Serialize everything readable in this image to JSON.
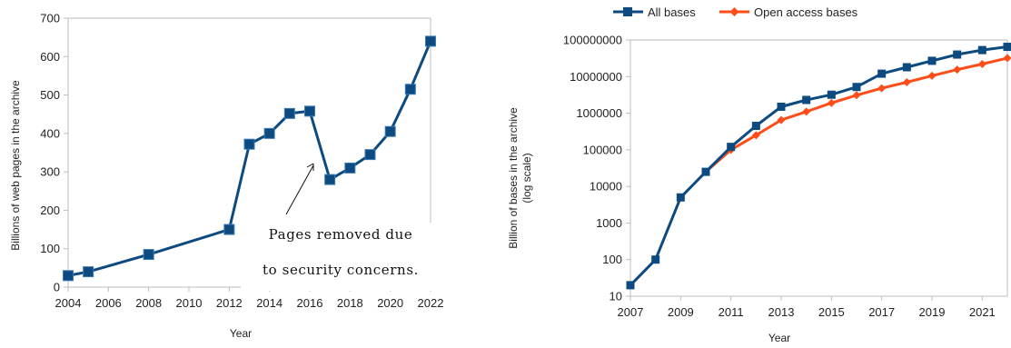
{
  "chart_data": [
    {
      "type": "line",
      "xlabel": "Year",
      "ylabel": "Billions of web pages in the archive",
      "xlim": [
        2004,
        2022
      ],
      "ylim": [
        0,
        700
      ],
      "x_ticks": [
        "2004",
        "2006",
        "2008",
        "2010",
        "2012",
        "2014",
        "2016",
        "2018",
        "2020",
        "2022"
      ],
      "y_ticks": [
        "0",
        "100",
        "200",
        "300",
        "400",
        "500",
        "600",
        "700"
      ],
      "grid": false,
      "colors": {
        "series": "#0c4a7f",
        "frame": "#bdbdbd"
      },
      "series": [
        {
          "x": [
            2004,
            2005,
            2008,
            2012,
            2013,
            2014,
            2015,
            2016,
            2017,
            2018,
            2019,
            2020,
            2021,
            2022
          ],
          "values": [
            30,
            40,
            85,
            150,
            372,
            400,
            452,
            458,
            280,
            310,
            345,
            405,
            515,
            640
          ]
        }
      ],
      "annotation": {
        "line1": "Pages removed due",
        "line2": "to security concerns.",
        "points_to_x": 2016
      }
    },
    {
      "type": "line",
      "xlabel": "Year",
      "ylabel_line1": "Billion of bases in the archive",
      "ylabel_line2": "(log scale)",
      "yscale": "log",
      "xlim": [
        2007,
        2022
      ],
      "ylim": [
        10,
        100000000
      ],
      "x_ticks": [
        "2007",
        "2009",
        "2011",
        "2013",
        "2015",
        "2017",
        "2019",
        "2021"
      ],
      "y_ticks": [
        "10",
        "100",
        "1000",
        "10000",
        "100000",
        "1000000",
        "10000000",
        "100000000"
      ],
      "grid": false,
      "legend_position": "top",
      "colors": {
        "all": "#0c4a7f",
        "open": "#ff4d1a",
        "frame": "#bdbdbd"
      },
      "series": [
        {
          "name": "All bases",
          "x": [
            2007,
            2008,
            2009,
            2010,
            2011,
            2012,
            2013,
            2014,
            2015,
            2016,
            2017,
            2018,
            2019,
            2020,
            2021,
            2022
          ],
          "values": [
            20,
            100,
            5000,
            25000,
            120000,
            450000,
            1500000,
            2300000,
            3200000,
            5200000,
            12000000,
            18000000,
            27000000,
            40000000,
            53000000,
            65000000
          ]
        },
        {
          "name": "Open access bases",
          "x": [
            2010,
            2011,
            2012,
            2013,
            2014,
            2015,
            2016,
            2017,
            2018,
            2019,
            2020,
            2021,
            2022
          ],
          "values": [
            25000,
            100000,
            250000,
            650000,
            1100000,
            1900000,
            3100000,
            4800000,
            7000000,
            10500000,
            15500000,
            22000000,
            32000000
          ]
        }
      ]
    }
  ]
}
